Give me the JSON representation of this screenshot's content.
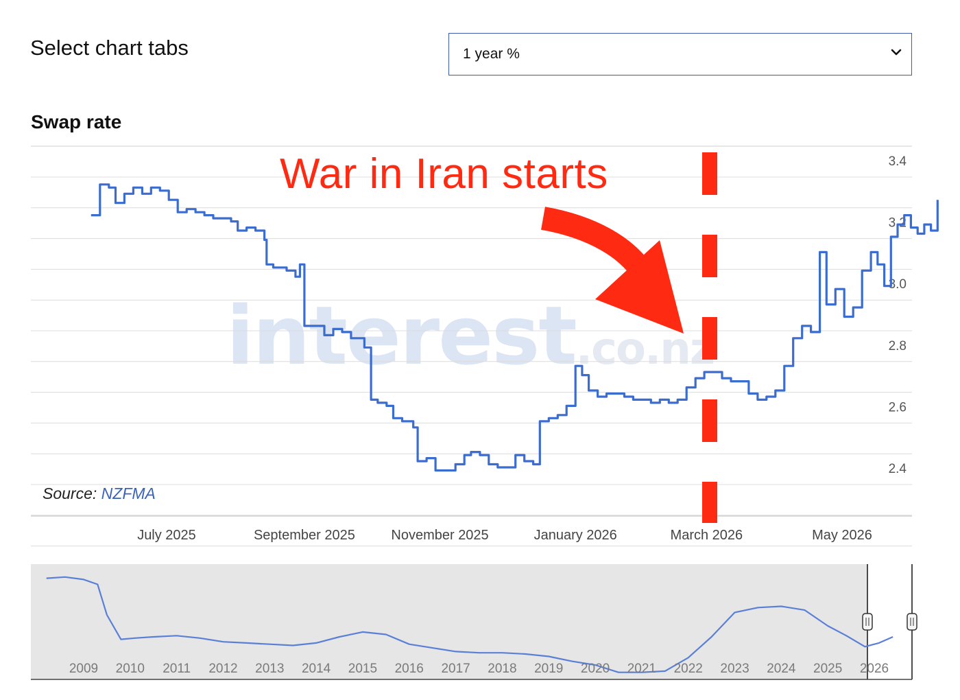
{
  "tabs": {
    "heading": "Select chart tabs",
    "selected": "1 year %"
  },
  "chart_title": "Swap rate",
  "source": {
    "label": "Source:",
    "link": "NZFMA"
  },
  "annotation": "War in Iran starts",
  "watermark": {
    "main": "interest",
    "suffix": ".co.nz"
  },
  "colors": {
    "line": "#3b6ccf",
    "annotation": "#ff2a12",
    "navigator_bg": "#e6e6e6"
  },
  "chart_data": [
    {
      "type": "line",
      "series": [
        {
          "values": [
            [
              "2025-05-28",
              3.22
            ],
            [
              "2025-06-01",
              3.32
            ],
            [
              "2025-06-05",
              3.31
            ],
            [
              "2025-06-08",
              3.26
            ],
            [
              "2025-06-12",
              3.29
            ],
            [
              "2025-06-16",
              3.31
            ],
            [
              "2025-06-20",
              3.29
            ],
            [
              "2025-06-24",
              3.31
            ],
            [
              "2025-06-28",
              3.3
            ],
            [
              "2025-07-02",
              3.27
            ],
            [
              "2025-07-06",
              3.23
            ],
            [
              "2025-07-10",
              3.24
            ],
            [
              "2025-07-14",
              3.23
            ],
            [
              "2025-07-18",
              3.22
            ],
            [
              "2025-07-22",
              3.21
            ],
            [
              "2025-07-26",
              3.21
            ],
            [
              "2025-07-30",
              3.2
            ],
            [
              "2025-08-02",
              3.17
            ],
            [
              "2025-08-06",
              3.18
            ],
            [
              "2025-08-10",
              3.17
            ],
            [
              "2025-08-14",
              3.14
            ],
            [
              "2025-08-15",
              3.06
            ],
            [
              "2025-08-18",
              3.05
            ],
            [
              "2025-08-24",
              3.04
            ],
            [
              "2025-08-28",
              3.02
            ],
            [
              "2025-08-30",
              3.06
            ],
            [
              "2025-09-01",
              2.86
            ],
            [
              "2025-09-05",
              2.86
            ],
            [
              "2025-09-10",
              2.83
            ],
            [
              "2025-09-14",
              2.85
            ],
            [
              "2025-09-18",
              2.84
            ],
            [
              "2025-09-22",
              2.82
            ],
            [
              "2025-09-26",
              2.82
            ],
            [
              "2025-09-28",
              2.79
            ],
            [
              "2025-10-01",
              2.62
            ],
            [
              "2025-10-04",
              2.61
            ],
            [
              "2025-10-08",
              2.6
            ],
            [
              "2025-10-11",
              2.56
            ],
            [
              "2025-10-15",
              2.55
            ],
            [
              "2025-10-20",
              2.53
            ],
            [
              "2025-10-22",
              2.42
            ],
            [
              "2025-10-26",
              2.43
            ],
            [
              "2025-10-30",
              2.39
            ],
            [
              "2025-11-04",
              2.39
            ],
            [
              "2025-11-08",
              2.41
            ],
            [
              "2025-11-12",
              2.44
            ],
            [
              "2025-11-15",
              2.45
            ],
            [
              "2025-11-19",
              2.44
            ],
            [
              "2025-11-23",
              2.41
            ],
            [
              "2025-11-27",
              2.4
            ],
            [
              "2025-12-01",
              2.4
            ],
            [
              "2025-12-05",
              2.44
            ],
            [
              "2025-12-09",
              2.42
            ],
            [
              "2025-12-13",
              2.41
            ],
            [
              "2025-12-16",
              2.55
            ],
            [
              "2025-12-20",
              2.56
            ],
            [
              "2025-12-24",
              2.57
            ],
            [
              "2025-12-28",
              2.6
            ],
            [
              "2026-01-01",
              2.73
            ],
            [
              "2026-01-04",
              2.7
            ],
            [
              "2026-01-07",
              2.65
            ],
            [
              "2026-01-11",
              2.63
            ],
            [
              "2026-01-15",
              2.64
            ],
            [
              "2026-01-19",
              2.64
            ],
            [
              "2026-01-23",
              2.63
            ],
            [
              "2026-01-27",
              2.62
            ],
            [
              "2026-01-31",
              2.62
            ],
            [
              "2026-02-04",
              2.61
            ],
            [
              "2026-02-08",
              2.62
            ],
            [
              "2026-02-12",
              2.61
            ],
            [
              "2026-02-16",
              2.62
            ],
            [
              "2026-02-20",
              2.66
            ],
            [
              "2026-02-24",
              2.69
            ],
            [
              "2026-02-28",
              2.71
            ],
            [
              "2026-03-04",
              2.71
            ],
            [
              "2026-03-08",
              2.69
            ],
            [
              "2026-03-12",
              2.68
            ],
            [
              "2026-03-16",
              2.68
            ],
            [
              "2026-03-20",
              2.64
            ],
            [
              "2026-03-24",
              2.62
            ],
            [
              "2026-03-28",
              2.63
            ],
            [
              "2026-04-01",
              2.65
            ],
            [
              "2026-04-05",
              2.73
            ],
            [
              "2026-04-09",
              2.82
            ],
            [
              "2026-04-13",
              2.86
            ],
            [
              "2026-04-17",
              2.84
            ],
            [
              "2026-04-21",
              3.1
            ],
            [
              "2026-04-24",
              2.93
            ],
            [
              "2026-04-28",
              2.98
            ],
            [
              "2026-05-02",
              2.89
            ],
            [
              "2026-05-06",
              2.92
            ],
            [
              "2026-05-10",
              3.04
            ],
            [
              "2026-05-14",
              3.1
            ],
            [
              "2026-05-17",
              3.06
            ],
            [
              "2026-05-20",
              2.99
            ],
            [
              "2026-05-23",
              3.15
            ],
            [
              "2026-05-26",
              3.19
            ],
            [
              "2026-05-29",
              3.22
            ],
            [
              "2026-06-01",
              3.18
            ],
            [
              "2026-06-04",
              3.16
            ],
            [
              "2026-06-07",
              3.19
            ],
            [
              "2026-06-10",
              3.17
            ],
            [
              "2026-06-13",
              3.27
            ]
          ]
        }
      ],
      "x_ticks": [
        "July 2025",
        "September 2025",
        "November 2025",
        "January 2026",
        "March 2026",
        "May 2026"
      ],
      "y_ticks": [
        3.4,
        3.2,
        3.0,
        2.8,
        2.6,
        2.4
      ],
      "ylim": [
        2.2,
        3.45
      ],
      "annotation": {
        "text": "War in Iran starts",
        "x": "2026-03-01",
        "style": "dashed vertical line with arrow"
      },
      "grid": true,
      "y_axis_side": "right"
    },
    {
      "type": "line",
      "role": "navigator",
      "x_ticks": [
        "2009",
        "2010",
        "2011",
        "2012",
        "2013",
        "2014",
        "2015",
        "2016",
        "2017",
        "2018",
        "2019",
        "2020",
        "2021",
        "2022",
        "2023",
        "2024",
        "2025",
        "2026"
      ],
      "values": [
        [
          2008.2,
          8.0
        ],
        [
          2008.6,
          8.1
        ],
        [
          2009.0,
          7.9
        ],
        [
          2009.3,
          7.5
        ],
        [
          2009.5,
          5.0
        ],
        [
          2009.8,
          3.0
        ],
        [
          2010.1,
          3.1
        ],
        [
          2010.5,
          3.2
        ],
        [
          2011.0,
          3.3
        ],
        [
          2011.5,
          3.1
        ],
        [
          2012.0,
          2.8
        ],
        [
          2012.5,
          2.7
        ],
        [
          2013.0,
          2.6
        ],
        [
          2013.5,
          2.5
        ],
        [
          2014.0,
          2.7
        ],
        [
          2014.5,
          3.2
        ],
        [
          2015.0,
          3.6
        ],
        [
          2015.5,
          3.4
        ],
        [
          2016.0,
          2.6
        ],
        [
          2016.5,
          2.3
        ],
        [
          2017.0,
          2.0
        ],
        [
          2017.5,
          1.9
        ],
        [
          2018.0,
          1.9
        ],
        [
          2018.5,
          1.8
        ],
        [
          2019.0,
          1.6
        ],
        [
          2019.5,
          1.2
        ],
        [
          2020.0,
          0.9
        ],
        [
          2020.5,
          0.3
        ],
        [
          2021.0,
          0.3
        ],
        [
          2021.5,
          0.4
        ],
        [
          2022.0,
          1.5
        ],
        [
          2022.5,
          3.2
        ],
        [
          2023.0,
          5.2
        ],
        [
          2023.5,
          5.6
        ],
        [
          2024.0,
          5.7
        ],
        [
          2024.5,
          5.4
        ],
        [
          2025.0,
          4.1
        ],
        [
          2025.4,
          3.3
        ],
        [
          2025.8,
          2.4
        ],
        [
          2026.1,
          2.7
        ],
        [
          2026.4,
          3.2
        ]
      ],
      "selected_range": [
        "2025-05",
        "2026-06"
      ]
    }
  ]
}
